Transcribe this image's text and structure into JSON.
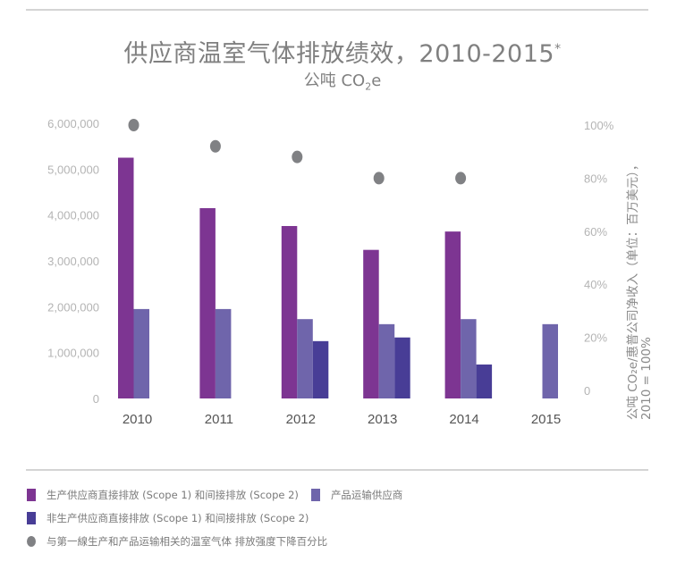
{
  "chart_data": {
    "type": "bar",
    "title": "供应商温室气体排放绩效，2010-2015",
    "title_marker": "*",
    "subtitle_prefix": "公吨 CO",
    "subtitle_sub": "2",
    "subtitle_suffix": "e",
    "categories": [
      "2010",
      "2011",
      "2012",
      "2013",
      "2014",
      "2015"
    ],
    "ylim": [
      0,
      6000000
    ],
    "yticks": [
      "0",
      "1,000,000",
      "2,000,000",
      "3,000,000",
      "4,000,000",
      "5,000,000",
      "6,000,000"
    ],
    "y2lim": [
      0,
      100
    ],
    "y2ticks": [
      "0",
      "20%",
      "40%",
      "60%",
      "80%",
      "100%"
    ],
    "y2label_line1": "公吨 CO₂e/惠普公司净收入（单位：百万美元），",
    "y2label_line2": "2010 = 100%",
    "grid": false,
    "series": [
      {
        "name": "生产供应商直接排放 (Scope 1) 和间接排放 (Scope 2)",
        "color": "#7D3592",
        "axis": "left",
        "values": [
          5250000,
          4150000,
          3760000,
          3240000,
          3640000,
          null
        ]
      },
      {
        "name": "产品运输供应商",
        "color": "#6F65AB",
        "axis": "left",
        "values": [
          1950000,
          1950000,
          1730000,
          1620000,
          1730000,
          1620000
        ]
      },
      {
        "name": "非生产供应商直接排放 (Scope 1) 和间接排放 (Scope 2)",
        "color": "#483D96",
        "axis": "left",
        "values": [
          null,
          null,
          1250000,
          1330000,
          740000,
          null
        ]
      },
      {
        "name": "与第一線生产和产品运输相关的温室气体 排放强度下降百分比",
        "color": "#808184",
        "axis": "right",
        "type": "scatter",
        "values": [
          100,
          92,
          88,
          80,
          80,
          null
        ]
      }
    ],
    "legend_position": "bottom"
  }
}
